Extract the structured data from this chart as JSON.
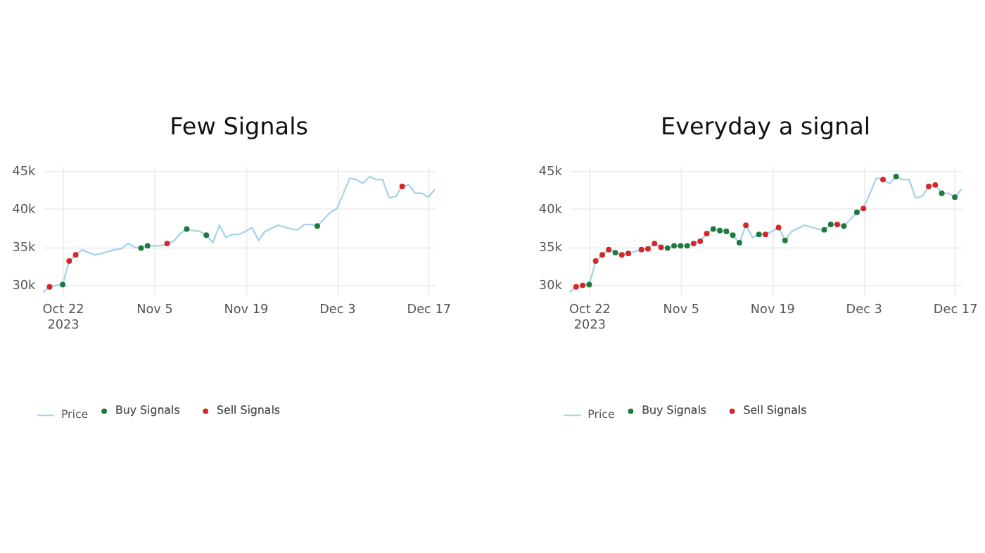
{
  "chart_data": [
    {
      "type": "line",
      "title": "Few Signals",
      "legend": "bottom left",
      "grid": true,
      "xlim": [
        "2023-10-19",
        "2023-12-18"
      ],
      "ylim": [
        28700,
        45500
      ],
      "xticks": [
        {
          "value": "2023-10-22",
          "label": "Oct 22\n2023"
        },
        {
          "value": "2023-11-05",
          "label": "Nov 5"
        },
        {
          "value": "2023-11-19",
          "label": "Nov 19"
        },
        {
          "value": "2023-12-03",
          "label": "Dec 3"
        },
        {
          "value": "2023-12-17",
          "label": "Dec 17"
        }
      ],
      "yticks": [
        {
          "value": 30000,
          "label": "30k"
        },
        {
          "value": 35000,
          "label": "35k"
        },
        {
          "value": 40000,
          "label": "40k"
        },
        {
          "value": 45000,
          "label": "45k"
        }
      ],
      "series": [
        {
          "name": "Price",
          "type": "line",
          "color": "#a9d4ea",
          "marker": "none",
          "x": [
            "2023-10-19",
            "2023-10-20",
            "2023-10-21",
            "2023-10-22",
            "2023-10-23",
            "2023-10-24",
            "2023-10-25",
            "2023-10-26",
            "2023-10-27",
            "2023-10-28",
            "2023-10-30",
            "2023-10-31",
            "2023-11-01",
            "2023-11-02",
            "2023-11-03",
            "2023-11-04",
            "2023-11-05",
            "2023-11-06",
            "2023-11-07",
            "2023-11-08",
            "2023-11-09",
            "2023-11-10",
            "2023-11-11",
            "2023-11-12",
            "2023-11-13",
            "2023-11-14",
            "2023-11-15",
            "2023-11-16",
            "2023-11-17",
            "2023-11-18",
            "2023-11-19",
            "2023-11-20",
            "2023-11-21",
            "2023-11-22",
            "2023-11-24",
            "2023-11-26",
            "2023-11-27",
            "2023-11-28",
            "2023-11-29",
            "2023-11-30",
            "2023-12-01",
            "2023-12-02",
            "2023-12-03",
            "2023-12-05",
            "2023-12-06",
            "2023-12-07",
            "2023-12-08",
            "2023-12-09",
            "2023-12-10",
            "2023-12-11",
            "2023-12-12",
            "2023-12-13",
            "2023-12-14",
            "2023-12-15",
            "2023-12-16",
            "2023-12-17",
            "2023-12-18"
          ],
          "values": [
            29000,
            29700,
            29900,
            30000,
            33100,
            33900,
            34600,
            34200,
            33900,
            34100,
            34600,
            34700,
            35400,
            34900,
            34800,
            35100,
            35100,
            35100,
            35400,
            35700,
            36700,
            37300,
            37100,
            37000,
            36500,
            35500,
            37800,
            36200,
            36600,
            36600,
            37000,
            37500,
            35800,
            37000,
            37800,
            37300,
            37200,
            37900,
            37900,
            37700,
            38600,
            39500,
            40000,
            44000,
            43800,
            43300,
            44200,
            43800,
            43800,
            41400,
            41600,
            42900,
            43100,
            42000,
            42000,
            41500,
            42500
          ]
        },
        {
          "name": "Buy Signals",
          "type": "scatter",
          "color": "#1e7a3c",
          "marker": "circle",
          "x": [
            "2023-10-22",
            "2023-11-03",
            "2023-11-04",
            "2023-11-10",
            "2023-11-13",
            "2023-11-30"
          ],
          "values": [
            30000,
            34800,
            35100,
            37300,
            36500,
            37700
          ]
        },
        {
          "name": "Sell Signals",
          "type": "scatter",
          "color": "#d62728",
          "marker": "circle",
          "x": [
            "2023-10-20",
            "2023-10-23",
            "2023-10-24",
            "2023-11-07",
            "2023-12-13"
          ],
          "values": [
            29700,
            33100,
            33900,
            35400,
            42900
          ]
        }
      ]
    },
    {
      "type": "line",
      "title": "Everyday a signal",
      "legend": "bottom left",
      "grid": true,
      "xlim": [
        "2023-10-19",
        "2023-12-18"
      ],
      "ylim": [
        28700,
        45500
      ],
      "xticks": [
        {
          "value": "2023-10-22",
          "label": "Oct 22\n2023"
        },
        {
          "value": "2023-11-05",
          "label": "Nov 5"
        },
        {
          "value": "2023-11-19",
          "label": "Nov 19"
        },
        {
          "value": "2023-12-03",
          "label": "Dec 3"
        },
        {
          "value": "2023-12-17",
          "label": "Dec 17"
        }
      ],
      "yticks": [
        {
          "value": 30000,
          "label": "30k"
        },
        {
          "value": 35000,
          "label": "35k"
        },
        {
          "value": 40000,
          "label": "40k"
        },
        {
          "value": 45000,
          "label": "45k"
        }
      ],
      "series": [
        {
          "name": "Price",
          "type": "line",
          "color": "#a9d4ea",
          "marker": "none",
          "x": [
            "2023-10-19",
            "2023-10-20",
            "2023-10-21",
            "2023-10-22",
            "2023-10-23",
            "2023-10-24",
            "2023-10-25",
            "2023-10-26",
            "2023-10-27",
            "2023-10-28",
            "2023-10-30",
            "2023-10-31",
            "2023-11-01",
            "2023-11-02",
            "2023-11-03",
            "2023-11-04",
            "2023-11-05",
            "2023-11-06",
            "2023-11-07",
            "2023-11-08",
            "2023-11-09",
            "2023-11-10",
            "2023-11-11",
            "2023-11-12",
            "2023-11-13",
            "2023-11-14",
            "2023-11-15",
            "2023-11-16",
            "2023-11-17",
            "2023-11-18",
            "2023-11-19",
            "2023-11-20",
            "2023-11-21",
            "2023-11-22",
            "2023-11-24",
            "2023-11-26",
            "2023-11-27",
            "2023-11-28",
            "2023-11-29",
            "2023-11-30",
            "2023-12-01",
            "2023-12-02",
            "2023-12-03",
            "2023-12-05",
            "2023-12-06",
            "2023-12-07",
            "2023-12-08",
            "2023-12-09",
            "2023-12-10",
            "2023-12-11",
            "2023-12-12",
            "2023-12-13",
            "2023-12-14",
            "2023-12-15",
            "2023-12-16",
            "2023-12-17",
            "2023-12-18"
          ],
          "values": [
            29000,
            29700,
            29900,
            30000,
            33100,
            33900,
            34600,
            34200,
            33900,
            34100,
            34600,
            34700,
            35400,
            34900,
            34800,
            35100,
            35100,
            35100,
            35400,
            35700,
            36700,
            37300,
            37100,
            37000,
            36500,
            35500,
            37800,
            36200,
            36600,
            36600,
            37000,
            37500,
            35800,
            37000,
            37800,
            37300,
            37200,
            37900,
            37900,
            37700,
            38600,
            39500,
            40000,
            44000,
            43800,
            43300,
            44200,
            43800,
            43800,
            41400,
            41600,
            42900,
            43100,
            42000,
            42000,
            41500,
            42500
          ]
        },
        {
          "name": "Buy Signals",
          "type": "scatter",
          "color": "#1e7a3c",
          "marker": "circle",
          "x": [
            "2023-10-22",
            "2023-10-26",
            "2023-11-03",
            "2023-11-04",
            "2023-11-05",
            "2023-11-06",
            "2023-11-10",
            "2023-11-11",
            "2023-11-12",
            "2023-11-13",
            "2023-11-14",
            "2023-11-17",
            "2023-11-21",
            "2023-11-27",
            "2023-11-28",
            "2023-11-30",
            "2023-12-02",
            "2023-12-08",
            "2023-12-15",
            "2023-12-17"
          ],
          "values": [
            30000,
            34200,
            34800,
            35100,
            35100,
            35100,
            37300,
            37100,
            37000,
            36500,
            35500,
            36600,
            35800,
            37200,
            37900,
            37700,
            39500,
            44200,
            42000,
            41500
          ]
        },
        {
          "name": "Sell Signals",
          "type": "scatter",
          "color": "#d62728",
          "marker": "circle",
          "x": [
            "2023-10-20",
            "2023-10-21",
            "2023-10-23",
            "2023-10-24",
            "2023-10-25",
            "2023-10-27",
            "2023-10-28",
            "2023-10-30",
            "2023-10-31",
            "2023-11-01",
            "2023-11-02",
            "2023-11-07",
            "2023-11-08",
            "2023-11-09",
            "2023-11-15",
            "2023-11-18",
            "2023-11-20",
            "2023-11-29",
            "2023-12-03",
            "2023-12-06",
            "2023-12-13",
            "2023-12-14"
          ],
          "values": [
            29700,
            29900,
            33100,
            33900,
            34600,
            33900,
            34100,
            34600,
            34700,
            35400,
            34900,
            35400,
            35700,
            36700,
            37800,
            36600,
            37500,
            37900,
            40000,
            43800,
            42900,
            43100
          ]
        }
      ]
    }
  ]
}
